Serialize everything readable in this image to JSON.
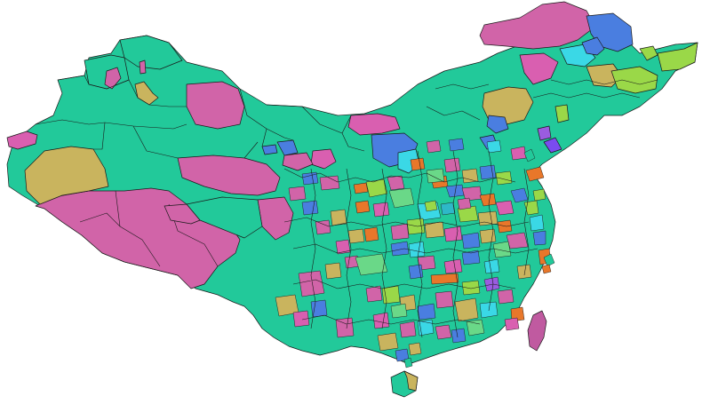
{
  "map": {
    "background": "#ffffff",
    "stroke": "#1a1a1a",
    "palette": {
      "green": "#22c99a",
      "magenta": "#d164a8",
      "pink": "#d95fb0",
      "khaki": "#c9b45e",
      "blue": "#4a7ee0",
      "cyan": "#3ad8e6",
      "lime": "#9ad848",
      "orange": "#e8772a",
      "purple": "#9a5ce0",
      "violet": "#7a4cf0",
      "teal": "#2eb8c8",
      "lightgreen": "#6ad888",
      "mauve": "#c05aa0"
    }
  }
}
